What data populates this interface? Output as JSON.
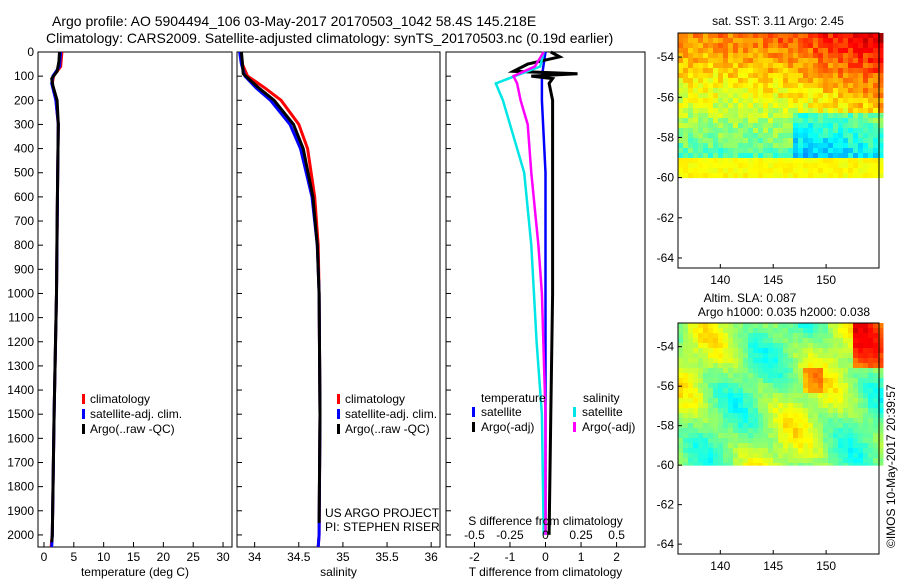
{
  "header": {
    "line1": "Argo profile: AO 5904494_106 03-May-2017 20170503_1042 58.4S 145.218E",
    "line2": "Climatology: CARS2009. Satellite-adjusted climatology: synTS_20170503.nc (0.19d earlier)"
  },
  "map_labels": {
    "sst": "sat. SST: 3.11  Argo: 2.45",
    "sla": "Altim. SLA: 0.087",
    "h": "Argo h1000: 0.035 h2000: 0.038"
  },
  "credit": {
    "project": "US ARGO PROJECT",
    "pi": "PI: STEPHEN RISER"
  },
  "watermark": "©IMOS 10-May-2017 20:39:57",
  "colors": {
    "climatology": "#ff0000",
    "satellite": "#0000ff",
    "argo": "#000000",
    "sat_diff": "#00e5e5",
    "argo_diff": "#ff00ff"
  },
  "chart_data": [
    {
      "type": "line",
      "panel": "temperature",
      "xlabel": "temperature (deg C)",
      "ylabel": "",
      "xlim": [
        -1,
        31.5
      ],
      "ylim": [
        2050,
        0
      ],
      "xticks": [
        0,
        5,
        10,
        15,
        20,
        25,
        30
      ],
      "yticks": [
        0,
        100,
        200,
        300,
        400,
        500,
        600,
        700,
        800,
        900,
        1000,
        1100,
        1200,
        1300,
        1400,
        1500,
        1600,
        1700,
        1800,
        1900,
        2000
      ],
      "legend": [
        "climatology",
        "satellite-adj. clim.",
        "Argo(..raw -QC)"
      ],
      "legend_placement": "lower-right",
      "series": [
        {
          "name": "climatology",
          "depth": [
            0,
            60,
            100,
            130,
            200,
            300,
            500,
            1000,
            1500,
            2000,
            2050
          ],
          "values": [
            3.0,
            2.8,
            1.6,
            1.4,
            2.0,
            2.4,
            2.3,
            2.1,
            1.7,
            1.4,
            1.2
          ]
        },
        {
          "name": "satellite-adj. clim.",
          "depth": [
            0,
            60,
            100,
            130,
            200,
            300,
            500,
            1000,
            1500,
            2000,
            2050
          ],
          "values": [
            2.8,
            2.6,
            1.5,
            1.3,
            2.0,
            2.4,
            2.3,
            2.1,
            1.7,
            1.4,
            1.3
          ]
        },
        {
          "name": "Argo(..raw -QC)",
          "depth": [
            0,
            40,
            80,
            110,
            140,
            200,
            300,
            500,
            700,
            1000,
            1500,
            2000,
            2030
          ],
          "values": [
            2.6,
            2.5,
            2.2,
            1.3,
            1.5,
            2.2,
            2.4,
            2.3,
            2.2,
            2.1,
            1.7,
            1.4,
            1.3
          ]
        }
      ]
    },
    {
      "type": "line",
      "panel": "salinity",
      "xlabel": "salinity",
      "xlim": [
        33.8,
        36.1
      ],
      "ylim": [
        2050,
        0
      ],
      "xticks": [
        34,
        34.5,
        35,
        35.5,
        36
      ],
      "legend": [
        "climatology",
        "satellite-adj. clim.",
        "Argo(..raw -QC)"
      ],
      "legend_placement": "lower-right",
      "series": [
        {
          "name": "climatology",
          "depth": [
            0,
            50,
            100,
            150,
            200,
            300,
            400,
            600,
            800,
            1000,
            1500,
            2000,
            2050
          ],
          "values": [
            33.84,
            33.86,
            33.92,
            34.12,
            34.3,
            34.5,
            34.6,
            34.68,
            34.72,
            34.73,
            34.74,
            34.73,
            34.72
          ]
        },
        {
          "name": "satellite-adj. clim.",
          "depth": [
            0,
            50,
            100,
            150,
            200,
            300,
            400,
            600,
            800,
            1000,
            1500,
            2000,
            2050
          ],
          "values": [
            33.83,
            33.85,
            33.89,
            34.02,
            34.18,
            34.4,
            34.52,
            34.65,
            34.71,
            34.73,
            34.74,
            34.73,
            34.72
          ]
        },
        {
          "name": "Argo(..raw -QC)",
          "depth": [
            0,
            40,
            90,
            110,
            150,
            200,
            300,
            400,
            600,
            800,
            1000,
            1500,
            1950
          ],
          "values": [
            33.85,
            33.86,
            33.87,
            33.93,
            34.05,
            34.22,
            34.44,
            34.55,
            34.66,
            34.71,
            34.73,
            34.74,
            34.73
          ]
        }
      ]
    },
    {
      "type": "line",
      "panel": "difference",
      "xlabel": "T difference from climatology",
      "top_label": "S difference from climatology",
      "xlim": [
        -2.8,
        2.8
      ],
      "ylim": [
        2050,
        0
      ],
      "xticks": [
        -2,
        -1,
        0,
        1,
        2
      ],
      "top_ticks": [
        "-0.5",
        "-0.25",
        "0",
        "0.25",
        "0.5"
      ],
      "legend_titles": [
        "temperature",
        "salinity"
      ],
      "legend": [
        "satellite",
        "Argo(-adj)",
        "satellite",
        "Argo(-adj)"
      ],
      "series": [
        {
          "name": "temperature satellite",
          "depth": [
            0,
            100,
            200,
            500,
            1000,
            1500,
            2000
          ],
          "values": [
            0.0,
            -0.1,
            -0.1,
            0.0,
            0.0,
            0.0,
            0.0
          ]
        },
        {
          "name": "temperature Argo(-adj)",
          "depth": [
            0,
            20,
            50,
            80,
            90,
            100,
            110,
            130,
            200,
            300,
            500,
            800,
            1000,
            1500,
            2000
          ],
          "values": [
            0.15,
            0.4,
            -0.5,
            -0.9,
            0.9,
            -0.4,
            0.2,
            0.1,
            0.2,
            0.2,
            0.2,
            0.2,
            0.2,
            0.15,
            0.1
          ]
        },
        {
          "name": "salinity satellite",
          "depth": [
            0,
            60,
            130,
            200,
            300,
            500,
            800,
            1200,
            1500,
            2000
          ],
          "values": [
            -0.05,
            -0.15,
            -1.4,
            -1.2,
            -1.0,
            -0.6,
            -0.4,
            -0.25,
            -0.1,
            -0.05
          ]
        },
        {
          "name": "salinity Argo(-adj)",
          "depth": [
            0,
            60,
            100,
            130,
            200,
            300,
            500,
            800,
            1000,
            1500,
            2000
          ],
          "values": [
            -0.05,
            -0.3,
            -0.9,
            -0.8,
            -0.7,
            -0.5,
            -0.4,
            -0.2,
            -0.1,
            0.0,
            0.0
          ]
        }
      ]
    },
    {
      "type": "heatmap",
      "panel": "sst-map",
      "title": "sat. SST: 3.11  Argo: 2.45",
      "xticks": [
        140,
        145,
        150
      ],
      "yticks": [
        -54,
        -56,
        -58,
        -60,
        -62,
        -64
      ],
      "xlim": [
        136,
        155
      ],
      "ylim": [
        -64.5,
        -52.8
      ],
      "data_lat_min": -60,
      "colormap": "jet"
    },
    {
      "type": "heatmap",
      "panel": "sla-map",
      "title": "Altim. SLA: 0.087",
      "xticks": [
        140,
        145,
        150
      ],
      "yticks": [
        -54,
        -56,
        -58,
        -60,
        -62,
        -64
      ],
      "xlim": [
        136,
        155
      ],
      "ylim": [
        -64.5,
        -52.8
      ],
      "data_lat_min": -60,
      "colormap": "jet"
    }
  ]
}
